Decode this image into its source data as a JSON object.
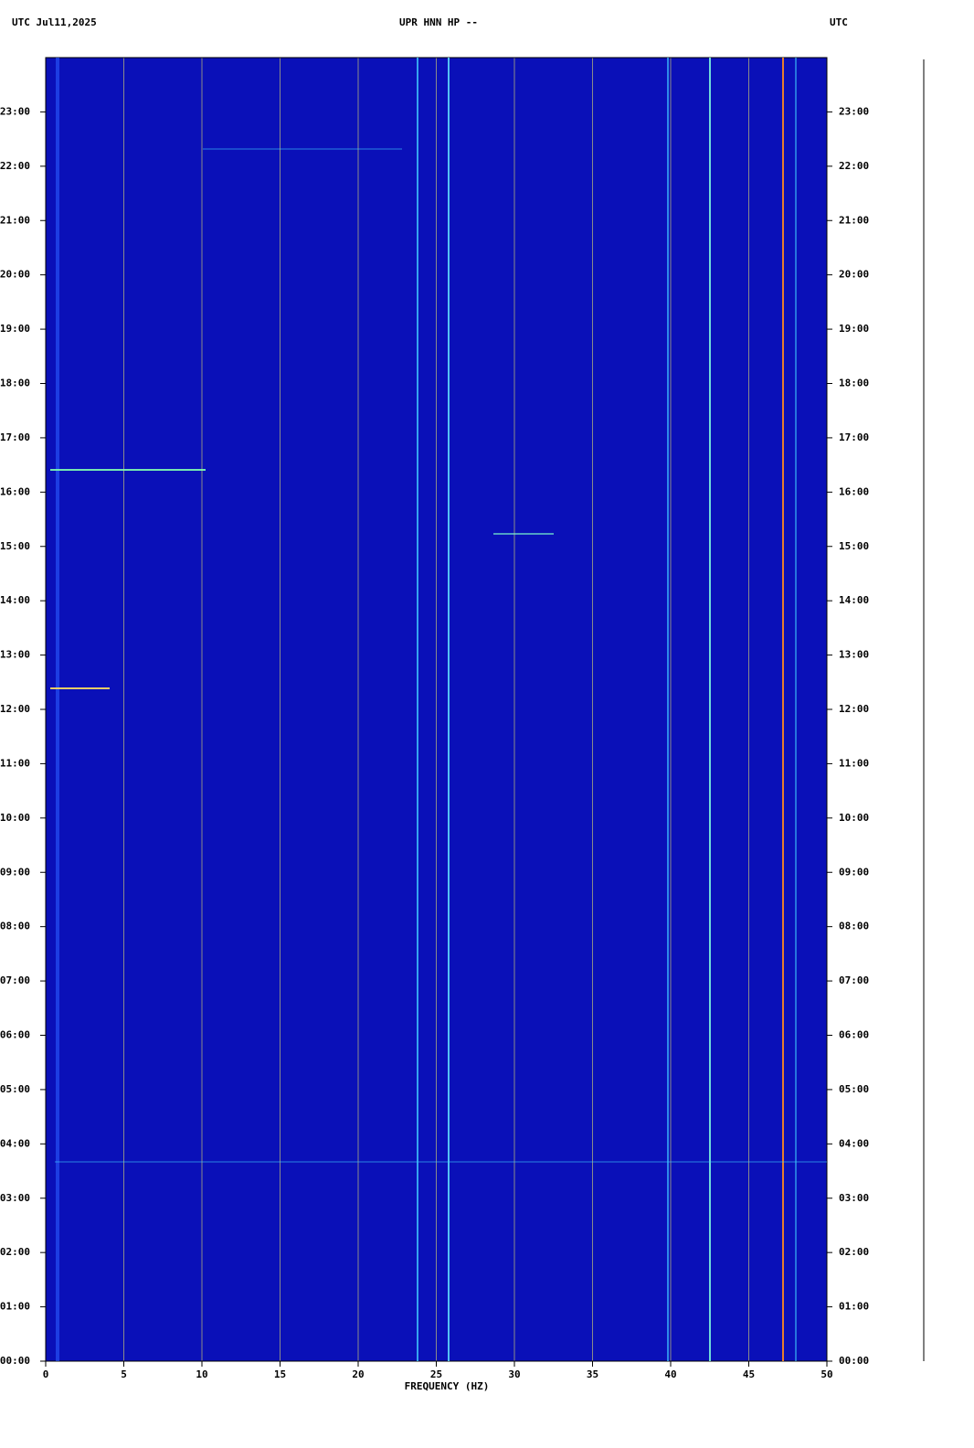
{
  "chart_data": {
    "type": "spectrogram",
    "title": "UPR HNN HP --",
    "date_label": "UTC  Jul11,2025",
    "timezone_label": "UTC",
    "xlabel": "FREQUENCY (HZ)",
    "xlim": [
      0,
      50
    ],
    "xticks": [
      0,
      5,
      10,
      15,
      20,
      25,
      30,
      35,
      40,
      45,
      50
    ],
    "ylim": [
      0,
      24
    ],
    "yticks": [
      {
        "value": 0,
        "label": "00:00"
      },
      {
        "value": 1,
        "label": "01:00"
      },
      {
        "value": 2,
        "label": "02:00"
      },
      {
        "value": 3,
        "label": "03:00"
      },
      {
        "value": 4,
        "label": "04:00"
      },
      {
        "value": 5,
        "label": "05:00"
      },
      {
        "value": 6,
        "label": "06:00"
      },
      {
        "value": 7,
        "label": "07:00"
      },
      {
        "value": 8,
        "label": "08:00"
      },
      {
        "value": 9,
        "label": "09:00"
      },
      {
        "value": 10,
        "label": "10:00"
      },
      {
        "value": 11,
        "label": "11:00"
      },
      {
        "value": 12,
        "label": "12:00"
      },
      {
        "value": 13,
        "label": "13:00"
      },
      {
        "value": 14,
        "label": "14:00"
      },
      {
        "value": 15,
        "label": "15:00"
      },
      {
        "value": 16,
        "label": "16:00"
      },
      {
        "value": 17,
        "label": "17:00"
      },
      {
        "value": 18,
        "label": "18:00"
      },
      {
        "value": 19,
        "label": "19:00"
      },
      {
        "value": 20,
        "label": "20:00"
      },
      {
        "value": 21,
        "label": "21:00"
      },
      {
        "value": 22,
        "label": "22:00"
      },
      {
        "value": 23,
        "label": "23:00"
      }
    ],
    "grid": true,
    "background_color": "#0a10b8",
    "grid_color": "#8a8a8a"
  }
}
